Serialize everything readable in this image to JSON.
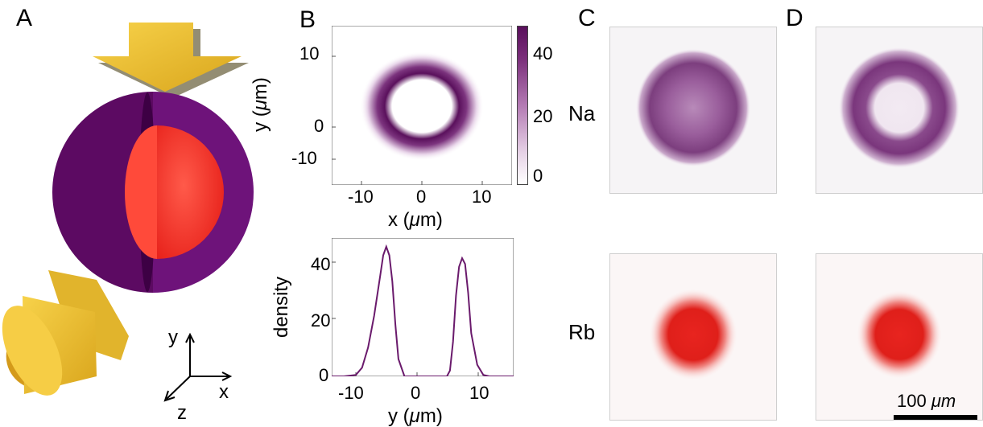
{
  "panels": {
    "a": "A",
    "b": "B",
    "c": "C",
    "d": "D"
  },
  "panel_b_map": {
    "x_label_prefix": "x (",
    "x_label_mu": "μ",
    "x_label_suffix": "m)",
    "y_label_prefix": "y (",
    "y_label_mu": "μ",
    "y_label_suffix": "m)",
    "x_ticks": [
      "-10",
      "0",
      "10"
    ],
    "y_ticks": [
      "10",
      "0",
      "-10"
    ],
    "colorbar_ticks": [
      "40",
      "20",
      "0"
    ]
  },
  "panel_b_profile": {
    "x_label_prefix": "y (",
    "x_label_mu": "μ",
    "x_label_suffix": "m)",
    "y_label": "density",
    "x_ticks": [
      "-10",
      "0",
      "10"
    ],
    "y_ticks": [
      "40",
      "20",
      "0"
    ]
  },
  "axes_gizmo": {
    "x": "x",
    "y": "y",
    "z": "z"
  },
  "species": {
    "na": "Na",
    "rb": "Rb"
  },
  "scale_bar": {
    "value": "100",
    "unit": "μm"
  },
  "colors": {
    "na_purple": "#6a1a6c",
    "rb_red": "#e01a1a",
    "gold": "#f2c230",
    "sphere_purple": "#6b0e70"
  },
  "chart_data": {
    "type": "line",
    "title": "",
    "xlabel": "y (μm)",
    "ylabel": "density",
    "xlim": [
      -15,
      15
    ],
    "ylim": [
      0,
      48
    ],
    "grid": false,
    "x": [
      -15,
      -13,
      -11,
      -10,
      -9,
      -8,
      -7,
      -6.5,
      -6,
      -5.5,
      -5,
      -4.5,
      -4,
      -3,
      0,
      3,
      4,
      4.5,
      5,
      5.5,
      6,
      6.5,
      7,
      7.5,
      8,
      9,
      10,
      11,
      13,
      15
    ],
    "y": [
      0,
      0,
      0.5,
      3,
      10,
      21,
      35,
      42,
      45,
      42,
      33,
      18,
      6,
      0,
      0,
      0,
      0,
      2,
      12,
      28,
      38,
      41,
      39,
      29,
      15,
      4,
      0.5,
      0,
      0,
      0
    ]
  }
}
